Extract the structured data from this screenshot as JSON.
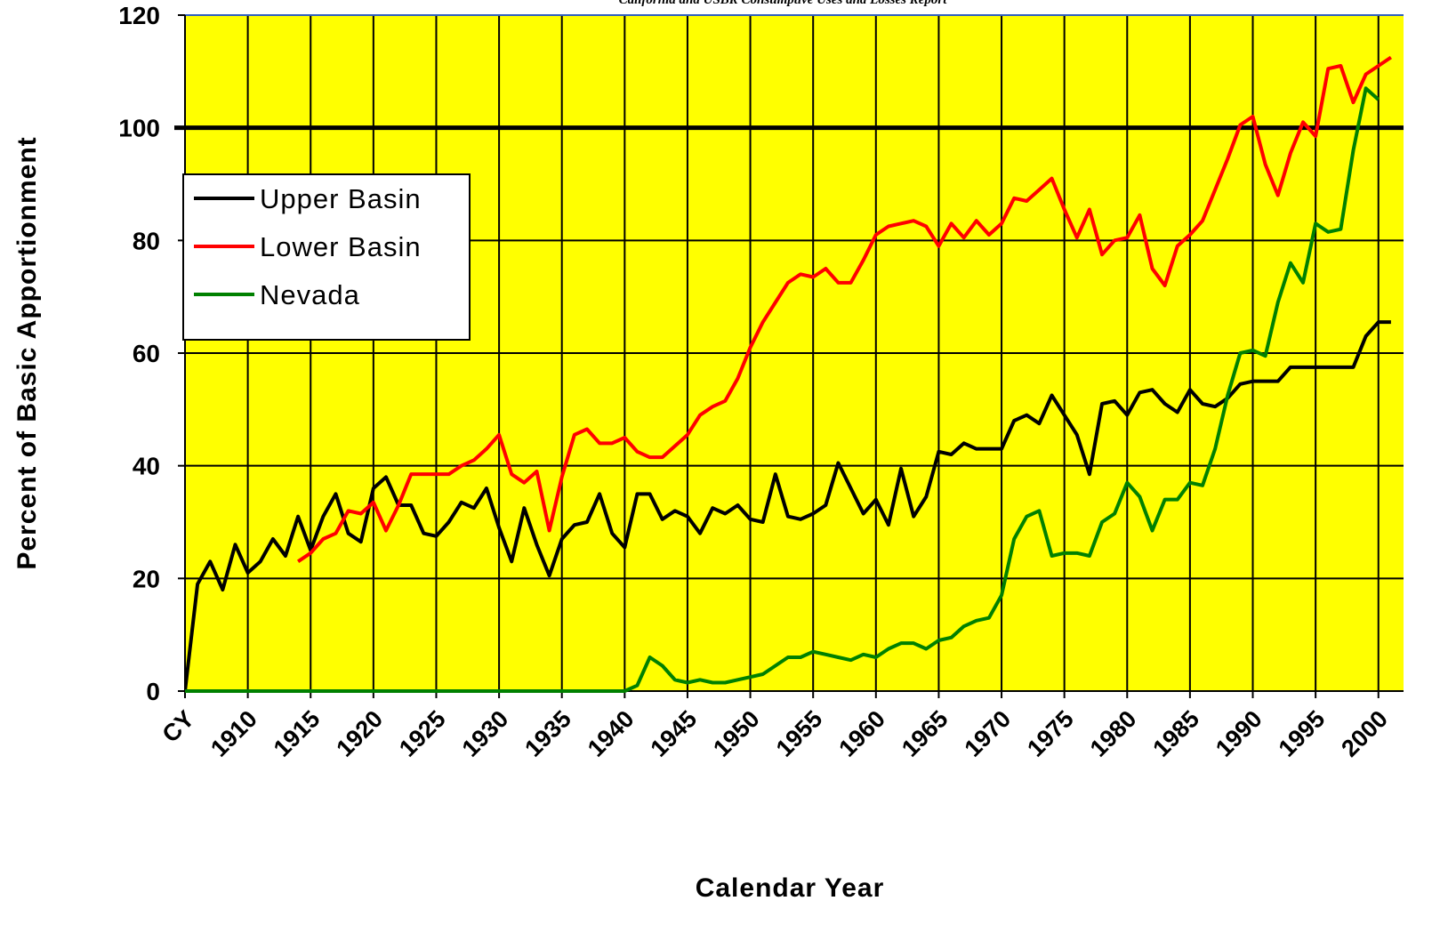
{
  "chart_data": {
    "type": "line",
    "note": "California and USBR Consumptive Uses and Losses Report",
    "x_label": "Calendar Year",
    "y_label": "Percent of Basic Apportionment",
    "x": [
      1905,
      1906,
      1907,
      1908,
      1909,
      1910,
      1911,
      1912,
      1913,
      1914,
      1915,
      1916,
      1917,
      1918,
      1919,
      1920,
      1921,
      1922,
      1923,
      1924,
      1925,
      1926,
      1927,
      1928,
      1929,
      1930,
      1931,
      1932,
      1933,
      1934,
      1935,
      1936,
      1937,
      1938,
      1939,
      1940,
      1941,
      1942,
      1943,
      1944,
      1945,
      1946,
      1947,
      1948,
      1949,
      1950,
      1951,
      1952,
      1953,
      1954,
      1955,
      1956,
      1957,
      1958,
      1959,
      1960,
      1961,
      1962,
      1963,
      1964,
      1965,
      1966,
      1967,
      1968,
      1969,
      1970,
      1971,
      1972,
      1973,
      1974,
      1975,
      1976,
      1977,
      1978,
      1979,
      1980,
      1981,
      1982,
      1983,
      1984,
      1985,
      1986,
      1987,
      1988,
      1989,
      1990,
      1991,
      1992,
      1993,
      1994,
      1995,
      1996,
      1997,
      1998,
      1999,
      2000,
      2001
    ],
    "series": [
      {
        "name": "Upper Basin",
        "color": "#000000",
        "values": [
          0,
          19,
          23,
          18,
          26,
          21,
          23,
          27,
          24,
          31,
          25,
          31,
          35,
          28,
          26.5,
          36,
          38,
          33,
          33,
          28,
          27.5,
          30,
          33.5,
          32.5,
          36,
          29,
          23,
          32.5,
          26,
          20.5,
          27,
          29.5,
          30,
          35,
          28,
          25.5,
          35,
          35,
          30.5,
          32,
          31,
          28,
          32.5,
          31.5,
          33,
          30.5,
          30,
          38.5,
          31,
          30.5,
          31.5,
          33,
          40.5,
          36,
          31.5,
          34,
          29.5,
          39.5,
          31,
          34.5,
          42.5,
          42,
          44,
          43,
          43,
          43,
          48,
          49,
          47.5,
          52.5,
          49,
          45.5,
          38.5,
          51,
          51.5,
          49,
          53,
          53.5,
          51,
          49.5,
          53.5,
          51,
          50.5,
          52,
          54.5,
          55,
          55,
          55,
          57.5,
          57.5,
          57.5,
          57.5,
          57.5,
          57.5,
          63,
          65.5,
          65.5
        ]
      },
      {
        "name": "Lower Basin",
        "color": "#ff0000",
        "values": [
          null,
          null,
          null,
          null,
          null,
          null,
          null,
          null,
          null,
          23,
          24.5,
          27,
          28,
          32,
          31.5,
          33.5,
          28.5,
          33,
          38.5,
          38.5,
          38.5,
          38.5,
          40,
          41,
          43,
          45.5,
          38.5,
          37,
          39,
          28.5,
          38,
          45.5,
          46.5,
          44,
          44,
          45,
          42.5,
          41.5,
          41.5,
          43.5,
          45.5,
          49,
          50.5,
          51.5,
          55.5,
          61,
          65.5,
          69,
          72.5,
          74,
          73.5,
          75,
          72.5,
          72.5,
          76.5,
          81,
          82.5,
          83,
          83.5,
          82.5,
          79,
          83,
          80.5,
          83.5,
          81,
          83,
          87.5,
          87,
          89,
          91,
          85.5,
          80.5,
          85.5,
          77.5,
          80,
          80.5,
          84.5,
          75,
          72,
          79,
          81,
          83.5,
          89,
          94.5,
          100.5,
          102,
          93.5,
          88,
          95.5,
          101,
          98.5,
          110.5,
          111,
          104.5,
          109.5,
          111,
          112.5
        ]
      },
      {
        "name": "Nevada",
        "color": "#008000",
        "values": [
          0,
          0,
          0,
          0,
          0,
          0,
          0,
          0,
          0,
          0,
          0,
          0,
          0,
          0,
          0,
          0,
          0,
          0,
          0,
          0,
          0,
          0,
          0,
          0,
          0,
          0,
          0,
          0,
          0,
          0,
          0,
          0,
          0,
          0,
          0,
          0,
          1,
          6,
          4.5,
          2,
          1.5,
          2,
          1.5,
          1.5,
          2,
          2.5,
          3,
          4.5,
          6,
          6,
          7,
          6.5,
          6,
          5.5,
          6.5,
          6,
          7.5,
          8.5,
          8.5,
          7.5,
          9,
          9.5,
          11.5,
          12.5,
          13,
          17,
          27,
          31,
          32,
          24,
          24.5,
          24.5,
          24,
          30,
          31.5,
          37,
          34.5,
          28.5,
          34,
          34,
          37,
          36.5,
          43,
          52.5,
          60,
          60.5,
          59.5,
          69,
          76,
          72.5,
          83,
          81.5,
          82,
          96,
          107,
          105,
          null
        ]
      }
    ],
    "xlim": [
      1905,
      2002
    ],
    "xticks": [
      {
        "value": 1905,
        "label": "CY"
      },
      1910,
      1915,
      1920,
      1925,
      1930,
      1935,
      1940,
      1945,
      1950,
      1955,
      1960,
      1965,
      1970,
      1975,
      1980,
      1985,
      1990,
      1995,
      2000
    ],
    "ylim": [
      0,
      120
    ],
    "yticks": [
      0,
      20,
      40,
      60,
      80,
      100,
      120
    ],
    "reference_line": 100,
    "background": "#ffff00",
    "grid": true,
    "legend": "upper-left"
  }
}
